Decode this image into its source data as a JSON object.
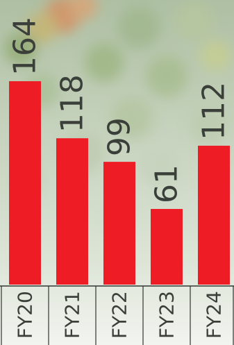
{
  "chart_data": {
    "type": "bar",
    "orientation": "vertical",
    "categories": [
      "FY20",
      "FY21",
      "FY22",
      "FY23",
      "FY24"
    ],
    "values": [
      164,
      118,
      99,
      61,
      112
    ],
    "value_labels": [
      "164",
      "118",
      "99",
      "61",
      "112"
    ],
    "ylim": [
      0,
      164
    ],
    "grid": false,
    "legend": "none",
    "label_orientation": "rotated-vertical"
  },
  "colors": {
    "bar": "#ee1c25",
    "text": "#3a3f3a",
    "axis_line": "#2f3530",
    "background": "#b9c8b0"
  },
  "background_image": "faded-vegetables-photo"
}
